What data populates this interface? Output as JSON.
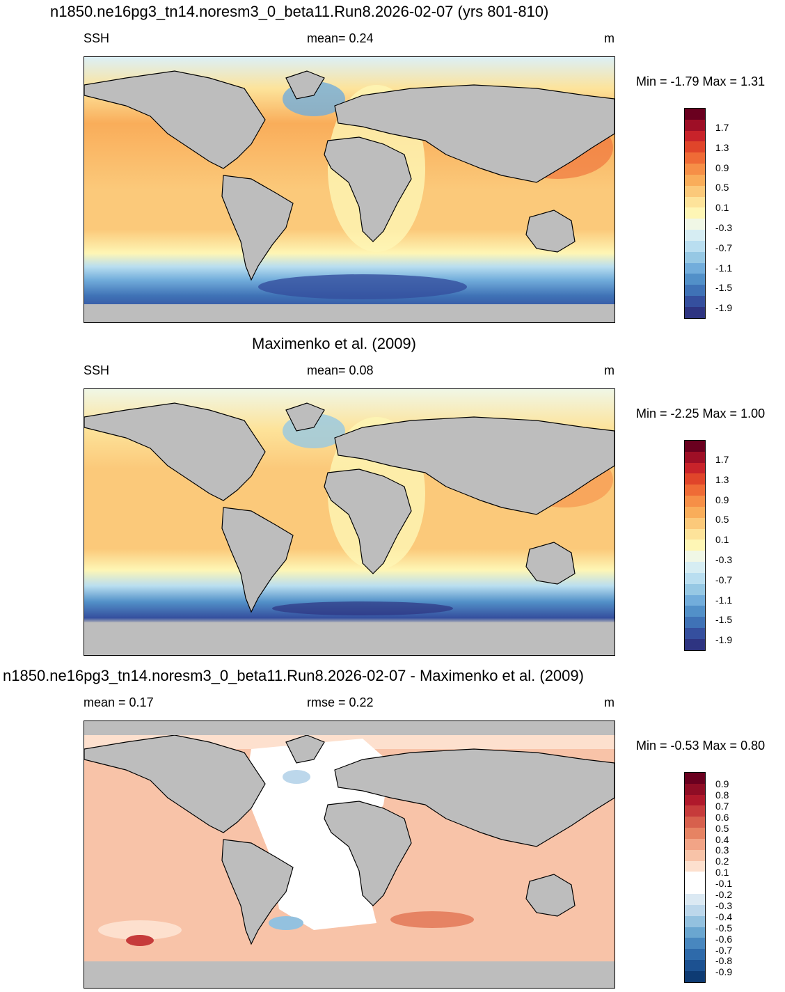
{
  "panels": [
    {
      "title": "n1850.ne16pg3_tn14.noresm3_0_beta11.Run8.2026-02-07 (yrs 801-810)",
      "left_label": "SSH",
      "center_label": "mean=   0.24",
      "right_label": "m",
      "minmax": "Min =  -1.79 Max =   1.31",
      "colorbar_labels": [
        "1.7",
        "1.3",
        "0.9",
        "0.5",
        "0.1",
        "-0.3",
        "-0.7",
        "-1.1",
        "-1.5",
        "-1.9"
      ]
    },
    {
      "title": "Maximenko et al. (2009)",
      "left_label": "SSH",
      "center_label": "mean=   0.08",
      "right_label": "m",
      "minmax": "Min =  -2.25 Max =   1.00",
      "colorbar_labels": [
        "1.7",
        "1.3",
        "0.9",
        "0.5",
        "0.1",
        "-0.3",
        "-0.7",
        "-1.1",
        "-1.5",
        "-1.9"
      ]
    },
    {
      "title": "n1850.ne16pg3_tn14.noresm3_0_beta11.Run8.2026-02-07 - Maximenko et al. (2009)",
      "left_label": "mean =   0.17",
      "center_label": "rmse =   0.22",
      "right_label": "m",
      "minmax": "Min =  -0.53 Max =   0.80",
      "colorbar_labels": [
        "0.9",
        "0.8",
        "0.7",
        "0.6",
        "0.5",
        "0.4",
        "0.3",
        "0.2",
        "0.1",
        "-0.1",
        "-0.2",
        "-0.3",
        "-0.4",
        "-0.5",
        "-0.6",
        "-0.7",
        "-0.8",
        "-0.9"
      ]
    }
  ],
  "colors": {
    "ssh_scale": [
      "#6a001f",
      "#9e0f26",
      "#c8232a",
      "#e0452a",
      "#ef6b36",
      "#f68f47",
      "#f9ad5a",
      "#fbc97a",
      "#fde39a",
      "#fef6b5",
      "#f0f7e6",
      "#d6edf3",
      "#b9def0",
      "#96c8e4",
      "#72addb",
      "#5290c8",
      "#3f72b6",
      "#354f9e",
      "#2e3481"
    ],
    "diff_scale": [
      "#6a001f",
      "#8f0d25",
      "#b0192b",
      "#c63b3b",
      "#d7604d",
      "#e68363",
      "#f2a486",
      "#f8c3a8",
      "#fde0ce",
      "#ffffff",
      "#ffffff",
      "#dbe9f3",
      "#bcd7eb",
      "#93c1df",
      "#6aa6d0",
      "#4887bf",
      "#2e6aaa",
      "#1c5191",
      "#0e3b73"
    ],
    "land": "#bdbdbd"
  }
}
